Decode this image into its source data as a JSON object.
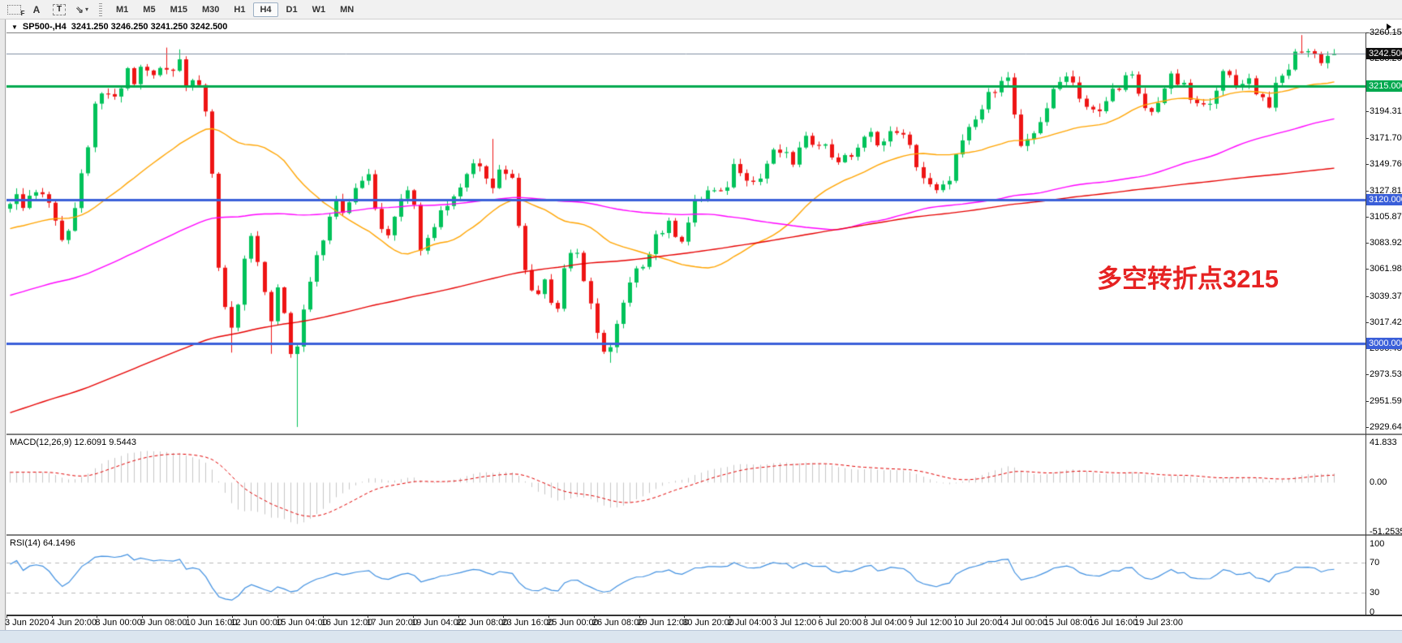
{
  "toolbar": {
    "icons": [
      {
        "name": "grid-f-icon",
        "glyph": "F"
      },
      {
        "name": "label-a-icon",
        "glyph": "A"
      },
      {
        "name": "text-box-icon",
        "glyph": "T"
      },
      {
        "name": "arrow-style-icon",
        "glyph": "⇘"
      }
    ],
    "timeframes": [
      "M1",
      "M5",
      "M15",
      "M30",
      "H1",
      "H4",
      "D1",
      "W1",
      "MN"
    ],
    "active_timeframe": "H4"
  },
  "title": {
    "symbol_timeframe": "SP500-,H4",
    "ohlc_text": "3241.250 3246.250 3241.250 3242.500"
  },
  "annotation": {
    "text": "多空转折点3215",
    "color": "#e62222"
  },
  "macd": {
    "label": "MACD(12,26,9) 12.6091 9.5443"
  },
  "rsi": {
    "label": "RSI(14) 64.1496"
  },
  "price_axis": {
    "ticks": [
      "3260.150",
      "3238.205",
      "3194.315",
      "3171.705",
      "3149.760",
      "3127.815",
      "3105.870",
      "3083.925",
      "3061.980",
      "3039.370",
      "3017.425",
      "2995.480",
      "2973.535",
      "2951.590",
      "2929.645"
    ],
    "badges": [
      {
        "label": "3242.500",
        "price": 3242.5,
        "bg": "#111111"
      },
      {
        "label": "3215.000",
        "price": 3215.0,
        "bg": "#00a94f"
      },
      {
        "label": "3120.000",
        "price": 3120.0,
        "bg": "#3a5fd9"
      },
      {
        "label": "3000.000",
        "price": 3000.0,
        "bg": "#3a5fd9"
      }
    ]
  },
  "time_axis": {
    "labels": [
      "3 Jun 2020",
      "4 Jun 20:00",
      "8 Jun 00:00",
      "9 Jun 08:00",
      "10 Jun 16:00",
      "12 Jun 00:00",
      "15 Jun 04:00",
      "16 Jun 12:00",
      "17 Jun 20:00",
      "19 Jun 04:00",
      "22 Jun 08:00",
      "23 Jun 16:00",
      "25 Jun 00:00",
      "26 Jun 08:00",
      "29 Jun 12:00",
      "30 Jun 20:00",
      "2 Jul 04:00",
      "3 Jul 12:00",
      "6 Jul 20:00",
      "8 Jul 04:00",
      "9 Jul 12:00",
      "10 Jul 20:00",
      "14 Jul 00:00",
      "15 Jul 08:00",
      "16 Jul 16:00",
      "19 Jul 23:00"
    ]
  },
  "chart_data": {
    "type": "candlestick",
    "symbol": "SP500-",
    "timeframe": "H4",
    "bars": 204,
    "ohlc_current": {
      "open": 3241.25,
      "high": 3246.25,
      "low": 3241.25,
      "close": 3242.5
    },
    "y_axis": {
      "min": 2929.645,
      "max": 3260.15,
      "tick_step": 21.945
    },
    "colors": {
      "up": "#00c25a",
      "down": "#ee1414",
      "ma_fast": "#ffa400",
      "ma_medium": "#ff00ff",
      "ma_slow": "#e60000",
      "macd_hist": "#c6c6c6",
      "macd_signal": "#e00000",
      "rsi_line": "#3f8fe0"
    },
    "levels": [
      {
        "price": 3242.5,
        "color": "#7e8da0",
        "width": 1,
        "type": "current-price"
      },
      {
        "price": 3215.0,
        "color": "#00a94f",
        "width": 3,
        "type": "resistance-line"
      },
      {
        "price": 3120.0,
        "color": "#3a5fd9",
        "width": 3,
        "type": "support-line"
      },
      {
        "price": 3000.0,
        "color": "#3a5fd9",
        "width": 3,
        "type": "support-line"
      }
    ],
    "moving_averages": [
      {
        "name": "fast",
        "period": 30,
        "color": "#ffa400"
      },
      {
        "name": "medium",
        "period": 96,
        "color": "#ff00ff"
      },
      {
        "name": "slow",
        "period": 200,
        "color": "#e60000"
      }
    ],
    "indicators": {
      "macd": {
        "params": "12,26,9",
        "current_values": [
          12.6091,
          9.5443
        ],
        "axis": [
          {
            "label": "41.833",
            "value": 41.833
          },
          {
            "label": "0.00",
            "value": 0
          },
          {
            "label": "-51.2535",
            "value": -51.2535
          }
        ]
      },
      "rsi": {
        "params": "14",
        "current_value": 64.1496,
        "axis": [
          {
            "label": "100",
            "value": 100
          },
          {
            "label": "70",
            "value": 70
          },
          {
            "label": "30",
            "value": 30
          },
          {
            "label": "0",
            "value": 0
          }
        ],
        "levels": [
          70,
          30
        ]
      }
    },
    "price_waypoints": [
      [
        0.0,
        3122
      ],
      [
        0.01,
        3118
      ],
      [
        0.022,
        3130
      ],
      [
        0.034,
        3108
      ],
      [
        0.04,
        3086
      ],
      [
        0.048,
        3100
      ],
      [
        0.056,
        3150
      ],
      [
        0.064,
        3195
      ],
      [
        0.072,
        3212
      ],
      [
        0.08,
        3200
      ],
      [
        0.088,
        3230
      ],
      [
        0.094,
        3218
      ],
      [
        0.1,
        3232
      ],
      [
        0.108,
        3222
      ],
      [
        0.116,
        3236
      ],
      [
        0.122,
        3228
      ],
      [
        0.128,
        3238
      ],
      [
        0.134,
        3216
      ],
      [
        0.14,
        3228
      ],
      [
        0.146,
        3205
      ],
      [
        0.152,
        3150
      ],
      [
        0.158,
        3060
      ],
      [
        0.164,
        3022
      ],
      [
        0.17,
        3012
      ],
      [
        0.176,
        3060
      ],
      [
        0.183,
        3088
      ],
      [
        0.19,
        3055
      ],
      [
        0.196,
        3012
      ],
      [
        0.202,
        3042
      ],
      [
        0.208,
        3022
      ],
      [
        0.214,
        2978
      ],
      [
        0.22,
        3015
      ],
      [
        0.228,
        3062
      ],
      [
        0.236,
        3088
      ],
      [
        0.245,
        3125
      ],
      [
        0.254,
        3108
      ],
      [
        0.262,
        3132
      ],
      [
        0.27,
        3142
      ],
      [
        0.278,
        3102
      ],
      [
        0.286,
        3092
      ],
      [
        0.294,
        3122
      ],
      [
        0.302,
        3135
      ],
      [
        0.31,
        3082
      ],
      [
        0.318,
        3098
      ],
      [
        0.328,
        3115
      ],
      [
        0.338,
        3128
      ],
      [
        0.348,
        3150
      ],
      [
        0.356,
        3152
      ],
      [
        0.364,
        3132
      ],
      [
        0.372,
        3150
      ],
      [
        0.38,
        3135
      ],
      [
        0.388,
        3072
      ],
      [
        0.396,
        3032
      ],
      [
        0.404,
        3058
      ],
      [
        0.412,
        3022
      ],
      [
        0.42,
        3072
      ],
      [
        0.428,
        3080
      ],
      [
        0.436,
        3040
      ],
      [
        0.444,
        3002
      ],
      [
        0.452,
        2992
      ],
      [
        0.46,
        3020
      ],
      [
        0.468,
        3048
      ],
      [
        0.478,
        3068
      ],
      [
        0.488,
        3092
      ],
      [
        0.498,
        3098
      ],
      [
        0.508,
        3088
      ],
      [
        0.518,
        3118
      ],
      [
        0.528,
        3128
      ],
      [
        0.538,
        3122
      ],
      [
        0.548,
        3152
      ],
      [
        0.556,
        3142
      ],
      [
        0.564,
        3132
      ],
      [
        0.572,
        3152
      ],
      [
        0.58,
        3162
      ],
      [
        0.59,
        3150
      ],
      [
        0.6,
        3168
      ],
      [
        0.61,
        3172
      ],
      [
        0.62,
        3158
      ],
      [
        0.63,
        3152
      ],
      [
        0.64,
        3164
      ],
      [
        0.65,
        3174
      ],
      [
        0.66,
        3168
      ],
      [
        0.67,
        3180
      ],
      [
        0.68,
        3162
      ],
      [
        0.69,
        3138
      ],
      [
        0.698,
        3124
      ],
      [
        0.706,
        3130
      ],
      [
        0.714,
        3155
      ],
      [
        0.722,
        3172
      ],
      [
        0.732,
        3192
      ],
      [
        0.742,
        3212
      ],
      [
        0.752,
        3230
      ],
      [
        0.758,
        3195
      ],
      [
        0.764,
        3158
      ],
      [
        0.772,
        3172
      ],
      [
        0.78,
        3192
      ],
      [
        0.79,
        3212
      ],
      [
        0.798,
        3228
      ],
      [
        0.806,
        3212
      ],
      [
        0.814,
        3196
      ],
      [
        0.822,
        3190
      ],
      [
        0.83,
        3208
      ],
      [
        0.838,
        3218
      ],
      [
        0.846,
        3225
      ],
      [
        0.854,
        3200
      ],
      [
        0.862,
        3192
      ],
      [
        0.87,
        3212
      ],
      [
        0.878,
        3222
      ],
      [
        0.886,
        3214
      ],
      [
        0.894,
        3200
      ],
      [
        0.902,
        3196
      ],
      [
        0.91,
        3214
      ],
      [
        0.918,
        3226
      ],
      [
        0.926,
        3216
      ],
      [
        0.934,
        3224
      ],
      [
        0.942,
        3210
      ],
      [
        0.95,
        3200
      ],
      [
        0.958,
        3218
      ],
      [
        0.966,
        3232
      ],
      [
        0.974,
        3248
      ],
      [
        0.982,
        3244
      ],
      [
        0.99,
        3238
      ],
      [
        1.0,
        3242.5
      ]
    ],
    "spikes": [
      {
        "f": 0.2167,
        "low": 2929.7
      },
      {
        "f": 0.116,
        "high": 3247.5
      },
      {
        "f": 0.128,
        "high": 3246.0
      },
      {
        "f": 0.364,
        "high": 3171.0
      },
      {
        "f": 0.168,
        "low": 2992.0
      },
      {
        "f": 0.198,
        "low": 2991.0
      },
      {
        "f": 0.452,
        "low": 2983.5
      },
      {
        "f": 0.974,
        "high": 3258.0
      }
    ]
  }
}
